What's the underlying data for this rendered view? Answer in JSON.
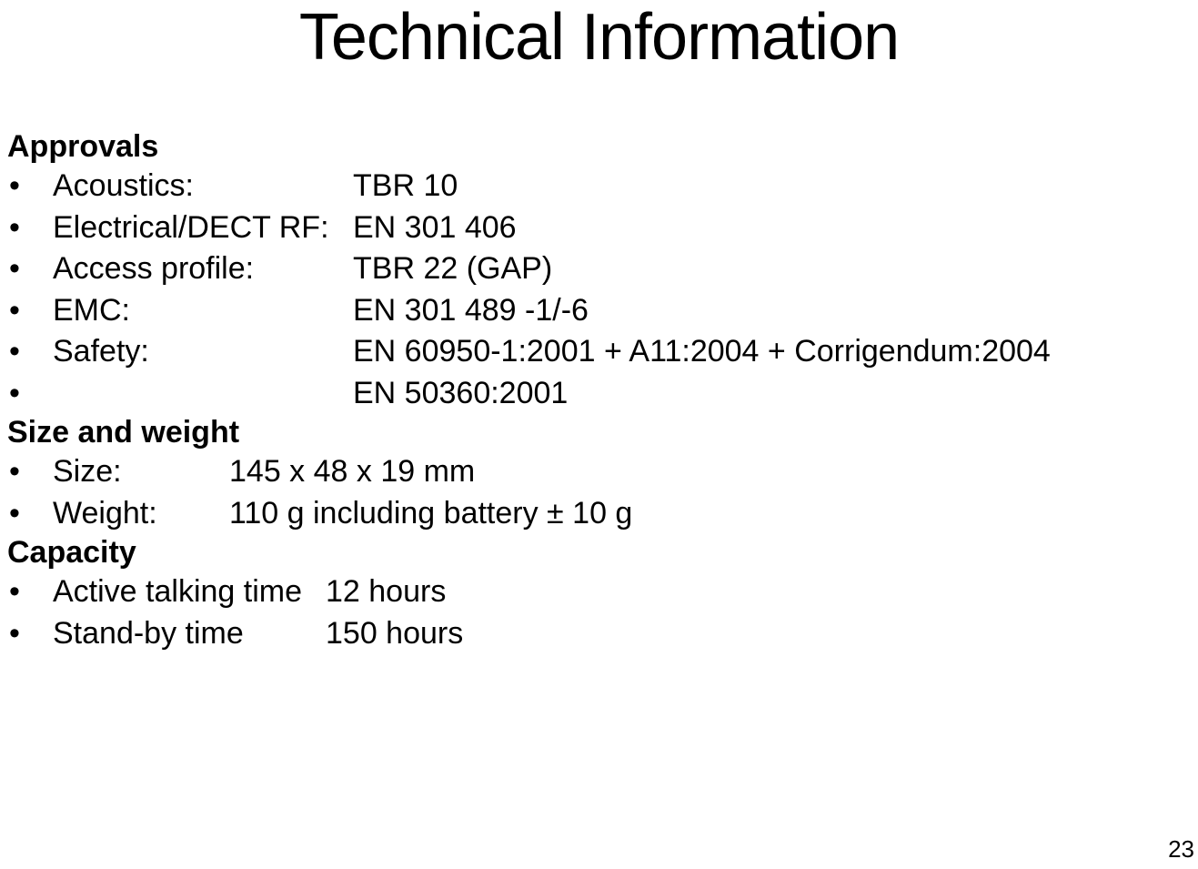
{
  "title": "Technical Information",
  "page_number": "23",
  "sections": {
    "approvals": {
      "header": "Approvals",
      "items": [
        {
          "label": "Acoustics:",
          "value": "TBR 10"
        },
        {
          "label": "Electrical/DECT RF:",
          "value": "EN 301 406"
        },
        {
          "label": "Access profile:",
          "value": "TBR 22 (GAP)"
        },
        {
          "label": "EMC:",
          "value": "EN 301 489 -1/-6"
        },
        {
          "label": "Safety:",
          "value": "EN 60950-1:2001 + A11:2004 + Corrigendum:2004"
        },
        {
          "label": "",
          "value": "EN 50360:2001"
        }
      ]
    },
    "size_weight": {
      "header": "Size and weight",
      "items": [
        {
          "label": "Size:",
          "value": "145 x 48 x 19 mm"
        },
        {
          "label": "Weight:",
          "value": "110 g including battery ± 10 g"
        }
      ]
    },
    "capacity": {
      "header": "Capacity",
      "items": [
        {
          "label": "Active talking time",
          "value": "12 hours"
        },
        {
          "label": "Stand-by time",
          "value": "150 hours"
        }
      ]
    }
  },
  "styling": {
    "background_color": "#ffffff",
    "text_color": "#000000",
    "title_fontsize": 72,
    "title_fontweight": "normal",
    "body_fontsize": 34,
    "header_fontweight": "bold",
    "font_family": "Arial, Helvetica, sans-serif",
    "page_number_fontsize": 26
  }
}
